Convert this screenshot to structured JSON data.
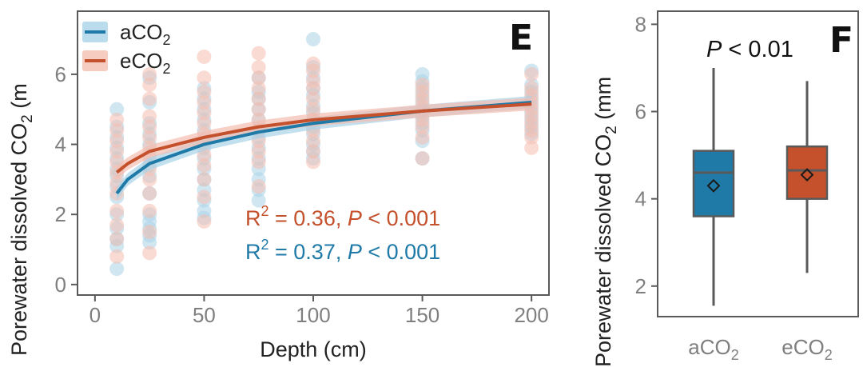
{
  "chart_data": [
    {
      "panel": "E",
      "type": "scatter",
      "xlabel": "Depth (cm)",
      "ylabel": "Porewater dissolved CO₂ (m",
      "xlim": [
        -8,
        208
      ],
      "ylim": [
        -0.3,
        7.8
      ],
      "xticks": [
        0,
        50,
        100,
        150,
        200
      ],
      "yticks": [
        0,
        2,
        4,
        6
      ],
      "legend_position": "top-left",
      "grid": false,
      "series": [
        {
          "name": "aCO₂",
          "color": "#1f7aa8",
          "light_color": "#a9d3e8",
          "points": {
            "10": [
              0.45,
              1.1,
              1.3,
              1.6,
              2.0,
              2.5,
              2.8,
              3.1,
              3.3,
              3.6,
              3.9,
              4.2,
              4.5,
              5.0
            ],
            "25": [
              1.2,
              1.4,
              1.6,
              1.8,
              2.0,
              2.6,
              3.1,
              3.4,
              3.7,
              4.0,
              4.3,
              4.6,
              5.2,
              5.9
            ],
            "50": [
              1.9,
              2.1,
              2.4,
              2.7,
              3.0,
              3.3,
              3.6,
              3.9,
              4.1,
              4.4,
              4.7,
              5.0,
              5.3,
              5.6
            ],
            "75": [
              2.4,
              2.7,
              3.0,
              3.3,
              3.6,
              3.9,
              4.2,
              4.4,
              4.7,
              5.0,
              5.3,
              5.5,
              5.9
            ],
            "100": [
              3.6,
              3.8,
              4.0,
              4.3,
              4.5,
              4.7,
              4.9,
              5.1,
              5.4,
              5.6,
              5.9,
              6.2,
              7.0
            ],
            "150": [
              3.6,
              4.1,
              4.4,
              4.6,
              4.8,
              5.0,
              5.2,
              5.4,
              5.6,
              5.8,
              6.0
            ],
            "200": [
              4.3,
              4.5,
              4.7,
              4.9,
              5.1,
              5.3,
              5.5,
              5.7,
              6.1
            ]
          },
          "fit": [
            [
              10,
              2.6
            ],
            [
              15,
              3.0
            ],
            [
              25,
              3.45
            ],
            [
              50,
              4.0
            ],
            [
              75,
              4.35
            ],
            [
              100,
              4.6
            ],
            [
              150,
              4.95
            ],
            [
              200,
              5.2
            ]
          ]
        },
        {
          "name": "eCO₂",
          "color": "#c4502c",
          "light_color": "#f4beb0",
          "points": {
            "10": [
              0.8,
              1.3,
              1.7,
              2.1,
              2.6,
              2.9,
              3.2,
              3.5,
              3.8,
              4.1,
              4.4,
              4.7
            ],
            "25": [
              0.9,
              1.5,
              2.1,
              2.6,
              3.0,
              3.3,
              3.6,
              3.9,
              4.2,
              4.5,
              4.8,
              5.3,
              5.7,
              6.0
            ],
            "50": [
              1.8,
              2.5,
              3.0,
              3.4,
              3.7,
              4.0,
              4.3,
              4.6,
              4.9,
              5.2,
              5.5,
              5.9,
              6.5
            ],
            "75": [
              2.8,
              3.5,
              3.8,
              4.1,
              4.4,
              4.7,
              5.0,
              5.3,
              5.6,
              5.9,
              6.2,
              6.6
            ],
            "100": [
              3.5,
              3.8,
              4.1,
              4.4,
              4.7,
              5.0,
              5.3,
              5.6,
              5.8,
              6.1,
              6.3
            ],
            "150": [
              3.6,
              4.2,
              4.5,
              4.7,
              4.9,
              5.1,
              5.3,
              5.5,
              5.7
            ],
            "200": [
              3.9,
              4.2,
              4.4,
              4.6,
              4.8,
              5.0,
              5.2,
              5.4,
              5.6,
              6.0
            ]
          },
          "fit": [
            [
              10,
              3.2
            ],
            [
              15,
              3.45
            ],
            [
              25,
              3.8
            ],
            [
              50,
              4.2
            ],
            [
              75,
              4.5
            ],
            [
              100,
              4.7
            ],
            [
              150,
              4.95
            ],
            [
              200,
              5.15
            ]
          ]
        }
      ],
      "annotations": [
        {
          "series": "eCO₂",
          "r2": "0.36",
          "p": "0.001"
        },
        {
          "series": "aCO₂",
          "r2": "0.37",
          "p": "0.001"
        }
      ]
    },
    {
      "panel": "F",
      "type": "box",
      "ylabel": "Porewater dissolved CO₂ (mm",
      "categories": [
        "aCO₂",
        "eCO₂"
      ],
      "ylim": [
        1.3,
        8.3
      ],
      "yticks": [
        2,
        4,
        6,
        8
      ],
      "annotation": {
        "p": "0.01"
      },
      "boxes": [
        {
          "name": "aCO₂",
          "color": "#1f7aa8",
          "whisker_low": 1.55,
          "q1": 3.6,
          "median": 4.6,
          "q3": 5.1,
          "whisker_high": 7.0,
          "mean": 4.3
        },
        {
          "name": "eCO₂",
          "color": "#c4502c",
          "whisker_low": 2.3,
          "q1": 4.0,
          "median": 4.65,
          "q3": 5.2,
          "whisker_high": 6.7,
          "mean": 4.55
        }
      ]
    }
  ],
  "labels": {
    "panel_e_letter": "E",
    "panel_f_letter": "F",
    "e_ylabel_prefix": "Porewater dissolved CO",
    "e_ylabel_sub": "2",
    "e_ylabel_suffix": " (m",
    "f_ylabel_prefix": "Porewater dissolved CO",
    "f_ylabel_sub": "2",
    "f_ylabel_suffix": " (mm",
    "xlabel": "Depth (cm)",
    "legend_a_prefix": "aCO",
    "legend_a_sub": "2",
    "legend_e_prefix": "eCO",
    "legend_e_sub": "2",
    "stat_e": {
      "r": "R",
      "sup": "2",
      "eq": " = 0.36,  ",
      "p": "P",
      "rest": " < 0.001"
    },
    "stat_a": {
      "r": "R",
      "sup": "2",
      "eq": " = 0.37,  ",
      "p": "P",
      "rest": " < 0.001"
    },
    "f_p": {
      "p": "P",
      "rest": " < 0.01"
    },
    "f_cat_a_prefix": "aCO",
    "f_cat_a_sub": "2",
    "f_cat_e_prefix": "eCO",
    "f_cat_e_sub": "2"
  },
  "colors": {
    "axis": "#5a5a5a",
    "tick_label": "#7f7f7f"
  }
}
